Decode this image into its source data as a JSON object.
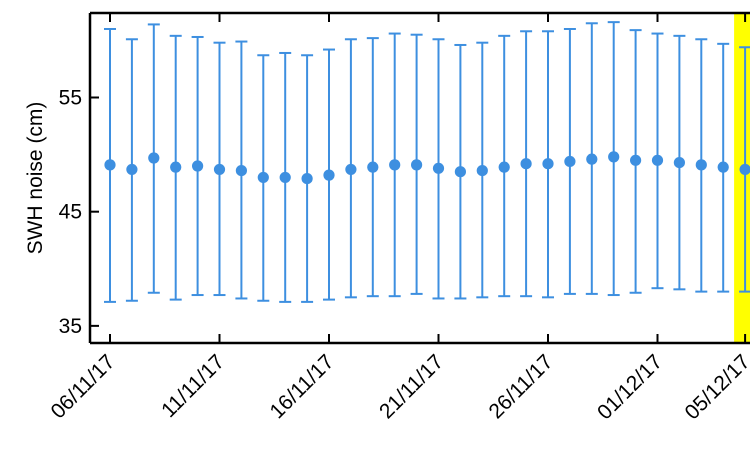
{
  "chart_data": {
    "type": "scatter",
    "subtype": "errorbar",
    "title": "",
    "xlabel": "",
    "ylabel": "SWH noise (cm)",
    "ylim": [
      33.5,
      62.4
    ],
    "yticks": [
      35,
      45,
      55
    ],
    "x_tick_labels": [
      "06/11/17",
      "11/11/17",
      "16/11/17",
      "21/11/17",
      "26/11/17",
      "01/12/17",
      "05/12/17"
    ],
    "x_tick_dates": [
      "2017-11-06",
      "2017-11-11",
      "2017-11-16",
      "2017-11-21",
      "2017-11-26",
      "2017-12-01",
      "2017-12-05"
    ],
    "highlight": {
      "date": "2017-12-05",
      "color": "#ffff00"
    },
    "marker_color": "#3d8fe0",
    "series": [
      {
        "x": [
          "2017-11-06",
          "2017-11-07",
          "2017-11-08",
          "2017-11-09",
          "2017-11-10",
          "2017-11-11",
          "2017-11-12",
          "2017-11-13",
          "2017-11-14",
          "2017-11-15",
          "2017-11-16",
          "2017-11-17",
          "2017-11-18",
          "2017-11-19",
          "2017-11-20",
          "2017-11-21",
          "2017-11-22",
          "2017-11-23",
          "2017-11-24",
          "2017-11-25",
          "2017-11-26",
          "2017-11-27",
          "2017-11-28",
          "2017-11-29",
          "2017-11-30",
          "2017-12-01",
          "2017-12-02",
          "2017-12-03",
          "2017-12-04",
          "2017-12-05"
        ],
        "y": [
          49.1,
          48.7,
          49.7,
          48.9,
          49.0,
          48.7,
          48.6,
          48.0,
          48.0,
          47.9,
          48.2,
          48.7,
          48.9,
          49.1,
          49.1,
          48.8,
          48.5,
          48.6,
          48.9,
          49.2,
          49.2,
          49.4,
          49.6,
          49.8,
          49.5,
          49.5,
          49.3,
          49.1,
          48.9,
          48.7
        ],
        "lower": [
          37.1,
          37.2,
          37.9,
          37.3,
          37.7,
          37.7,
          37.4,
          37.2,
          37.1,
          37.1,
          37.3,
          37.5,
          37.6,
          37.6,
          37.8,
          37.4,
          37.4,
          37.5,
          37.6,
          37.6,
          37.5,
          37.8,
          37.8,
          37.7,
          37.9,
          38.3,
          38.2,
          38.0,
          38.0,
          38.0
        ],
        "upper": [
          61.0,
          60.1,
          61.4,
          60.4,
          60.3,
          59.8,
          59.9,
          58.7,
          58.9,
          58.7,
          59.2,
          60.1,
          60.2,
          60.6,
          60.5,
          60.1,
          59.6,
          59.8,
          60.4,
          60.8,
          60.8,
          61.0,
          61.5,
          61.6,
          60.9,
          60.6,
          60.4,
          60.1,
          59.7,
          59.4
        ]
      }
    ]
  }
}
